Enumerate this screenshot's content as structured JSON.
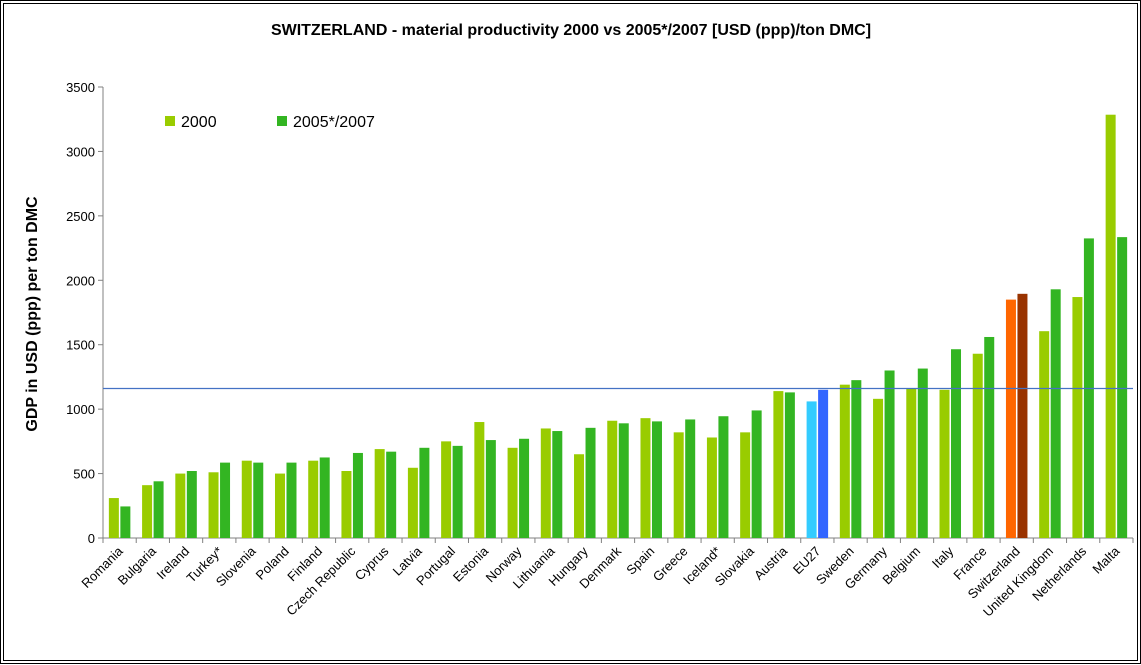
{
  "chart_data": {
    "type": "bar",
    "title": "SWITZERLAND - material productivity 2000 vs 2005*/2007 [USD (ppp)/ton DMC]",
    "xlabel": "",
    "ylabel": "GDP in USD (ppp) per ton DMC",
    "ylim": [
      0,
      3500
    ],
    "yticks": [
      0,
      500,
      1000,
      1500,
      2000,
      2500,
      3000,
      3500
    ],
    "grid": false,
    "legend_position": "top-left",
    "reference_line": 1160,
    "categories": [
      "Romania",
      "Bulgaria",
      "Ireland",
      "Turkey*",
      "Slovenia",
      "Poland",
      "Finland",
      "Czech Republic",
      "Cyprus",
      "Latvia",
      "Portugal",
      "Estonia",
      "Norway",
      "Lithuania",
      "Hungary",
      "Denmark",
      "Spain",
      "Greece",
      "Iceland*",
      "Slovakia",
      "Austria",
      "EU27",
      "Sweden",
      "Germany",
      "Belgium",
      "Italy",
      "France",
      "Switzerland",
      "United Kingdom",
      "Netherlands",
      "Malta"
    ],
    "series": [
      {
        "name": "2000",
        "color": "#99cc00",
        "values": [
          310,
          410,
          500,
          510,
          600,
          500,
          600,
          520,
          690,
          545,
          750,
          900,
          700,
          850,
          650,
          910,
          930,
          820,
          780,
          820,
          1140,
          1060,
          1190,
          1080,
          1160,
          1150,
          1430,
          1850,
          1605,
          1870,
          3285
        ]
      },
      {
        "name": "2005*/2007",
        "color": "#33b522",
        "values": [
          245,
          440,
          520,
          585,
          585,
          585,
          625,
          660,
          670,
          700,
          715,
          760,
          770,
          830,
          855,
          890,
          905,
          920,
          945,
          990,
          1130,
          1150,
          1225,
          1300,
          1315,
          1465,
          1560,
          1895,
          1930,
          2325,
          2335
        ]
      }
    ],
    "highlight_colors": {
      "EU27": [
        "#33ccff",
        "#3366ff"
      ],
      "Switzerland": [
        "#ff6600",
        "#993300"
      ]
    },
    "reference_line_color": "#4472c4"
  }
}
